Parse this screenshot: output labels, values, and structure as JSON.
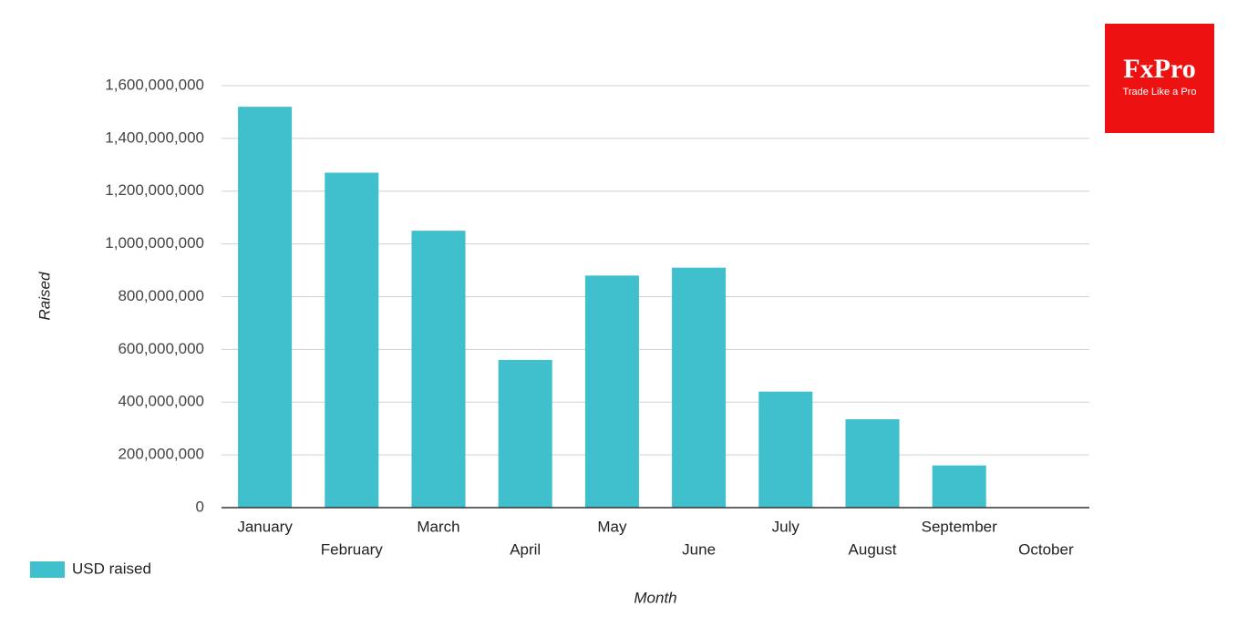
{
  "chart_data": {
    "type": "bar",
    "x_label": "Month",
    "y_label": "Raised",
    "categories": [
      "January",
      "February",
      "March",
      "April",
      "May",
      "June",
      "July",
      "August",
      "September",
      "October"
    ],
    "series": [
      {
        "name": "USD raised",
        "color": "#40bfcc",
        "values": [
          1520000000,
          1270000000,
          1050000000,
          560000000,
          880000000,
          910000000,
          440000000,
          335000000,
          160000000,
          0
        ]
      }
    ],
    "ylim": [
      0,
      1600000000
    ],
    "yticks": [
      0,
      {
        "value": 200000000,
        "label": "200,000,000"
      },
      {
        "value": 400000000,
        "label": "400,000,000"
      },
      {
        "value": 600000000,
        "label": "600,000,000"
      },
      {
        "value": 800000000,
        "label": "800,000,000"
      },
      {
        "value": 1000000000,
        "label": "1,000,000,000"
      },
      {
        "value": 1200000000,
        "label": "1,200,000,000"
      },
      {
        "value": 1400000000,
        "label": "1,400,000,000"
      },
      {
        "value": 1600000000,
        "label": "1,600,000,000"
      }
    ],
    "grid": true,
    "legend": "bottom-left"
  },
  "logo": {
    "name": "FxPro",
    "tagline": "Trade Like a Pro"
  }
}
